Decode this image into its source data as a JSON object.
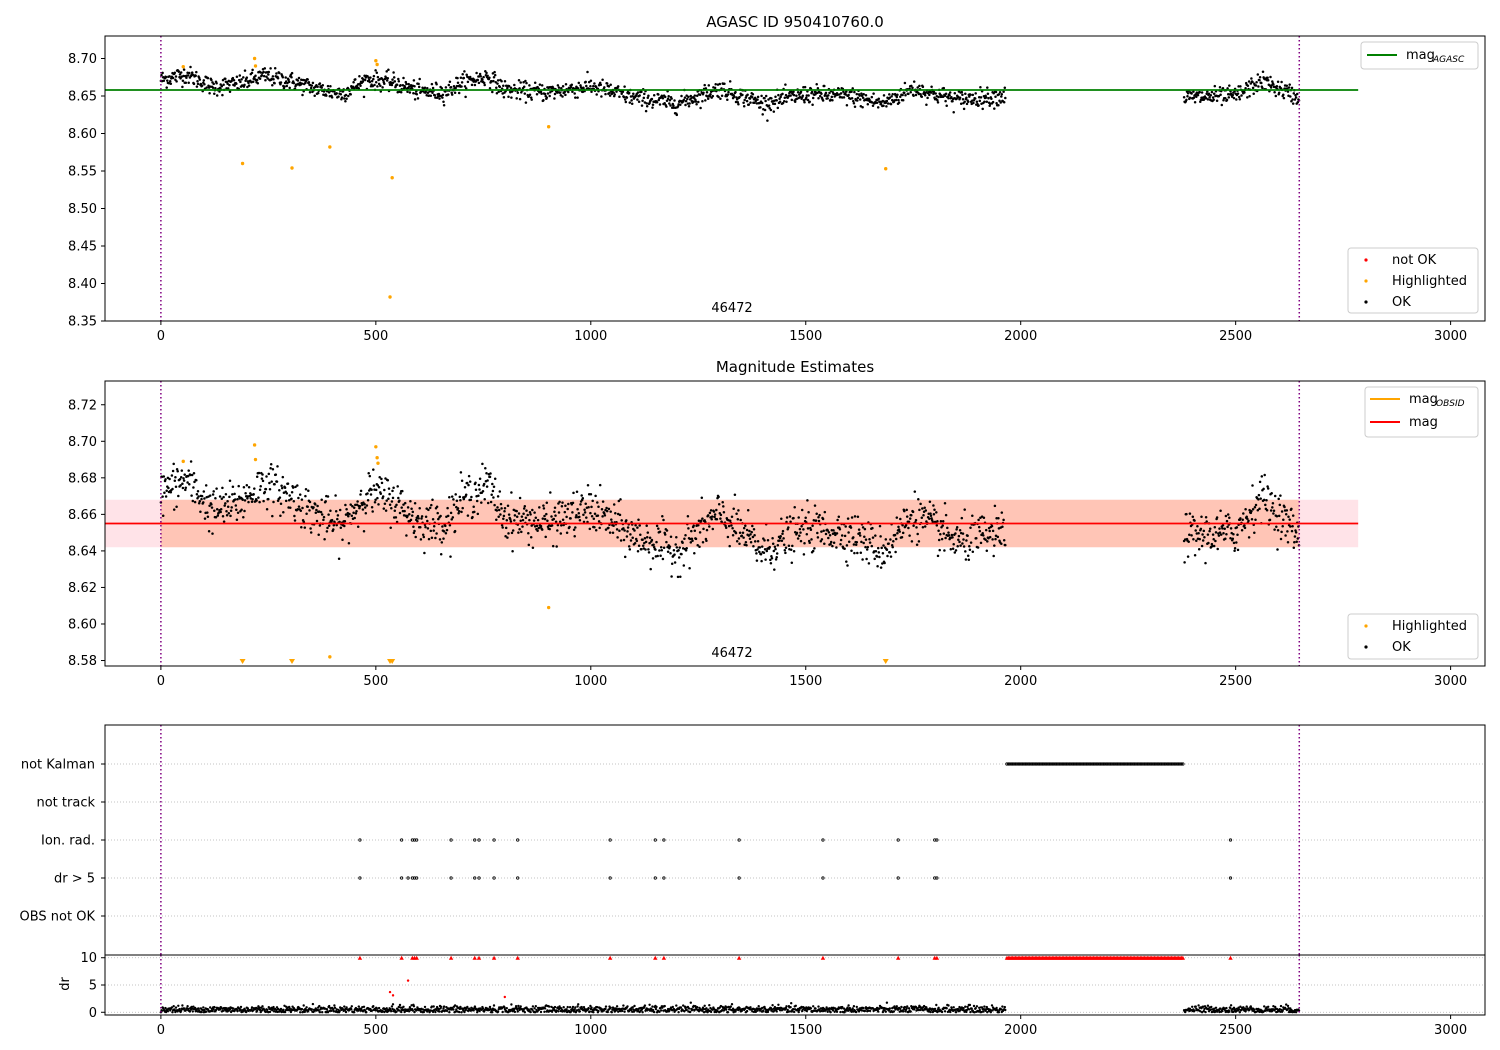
{
  "chart_data": [
    {
      "type": "scatter",
      "title": "AGASC ID 950410760.0",
      "annotation": "46472",
      "xlim": [
        -130,
        3080
      ],
      "ylim": [
        8.35,
        8.73
      ],
      "xticks": [
        0,
        500,
        1000,
        1500,
        2000,
        2500,
        3000
      ],
      "yticks": [
        8.35,
        8.4,
        8.45,
        8.5,
        8.55,
        8.6,
        8.65,
        8.7
      ],
      "ytick_labels": [
        "8.35",
        "8.40",
        "8.45",
        "8.50",
        "8.55",
        "8.60",
        "8.65",
        "8.70"
      ],
      "vlines": [
        0,
        2648
      ],
      "vline_color": "#800080",
      "ok_segments": [
        [
          0,
          1965
        ],
        [
          2380,
          2648
        ]
      ],
      "ok_baseline": [
        [
          0,
          8.672
        ],
        [
          60,
          8.679
        ],
        [
          120,
          8.662
        ],
        [
          180,
          8.666
        ],
        [
          240,
          8.677
        ],
        [
          300,
          8.67
        ],
        [
          360,
          8.66
        ],
        [
          420,
          8.653
        ],
        [
          480,
          8.672
        ],
        [
          540,
          8.668
        ],
        [
          600,
          8.656
        ],
        [
          660,
          8.655
        ],
        [
          700,
          8.668
        ],
        [
          760,
          8.676
        ],
        [
          800,
          8.658
        ],
        [
          900,
          8.655
        ],
        [
          1000,
          8.663
        ],
        [
          1100,
          8.648
        ],
        [
          1200,
          8.64
        ],
        [
          1300,
          8.66
        ],
        [
          1400,
          8.64
        ],
        [
          1500,
          8.652
        ],
        [
          1600,
          8.65
        ],
        [
          1680,
          8.64
        ],
        [
          1750,
          8.66
        ],
        [
          1850,
          8.645
        ],
        [
          1965,
          8.65
        ],
        [
          2380,
          8.648
        ],
        [
          2500,
          8.65
        ],
        [
          2560,
          8.67
        ],
        [
          2648,
          8.648
        ]
      ],
      "ok_spread": 0.006,
      "ok_color": "#000000",
      "highlighted_points": [
        [
          52,
          8.689
        ],
        [
          190,
          8.56
        ],
        [
          218,
          8.7
        ],
        [
          220,
          8.69
        ],
        [
          305,
          8.554
        ],
        [
          393,
          8.582
        ],
        [
          500,
          8.697
        ],
        [
          503,
          8.692
        ],
        [
          533,
          8.382
        ],
        [
          538,
          8.541
        ],
        [
          902,
          8.609
        ],
        [
          1686,
          8.553
        ]
      ],
      "highlighted_color": "#FFA500",
      "not_ok_color": "#FF0000",
      "line": {
        "name": "mag",
        "subscript": "AGASC",
        "value": 8.658,
        "x_range": [
          -130,
          2785
        ],
        "color": "#008000"
      },
      "legend_lines": [
        {
          "name": "mag",
          "subscript": "AGASC",
          "color": "#008000"
        }
      ],
      "legend_scatter": [
        {
          "name": "not OK",
          "color": "#FF0000"
        },
        {
          "name": "Highlighted",
          "color": "#FFA500"
        },
        {
          "name": "OK",
          "color": "#000000"
        }
      ]
    },
    {
      "type": "scatter",
      "title": "Magnitude Estimates",
      "annotation": "46472",
      "xlim": [
        -130,
        3080
      ],
      "ylim": [
        8.577,
        8.733
      ],
      "xticks": [
        0,
        500,
        1000,
        1500,
        2000,
        2500,
        3000
      ],
      "yticks": [
        8.58,
        8.6,
        8.62,
        8.64,
        8.66,
        8.68,
        8.7,
        8.72
      ],
      "ytick_labels": [
        "8.58",
        "8.60",
        "8.62",
        "8.64",
        "8.66",
        "8.68",
        "8.70",
        "8.72"
      ],
      "vlines": [
        0,
        2648
      ],
      "vline_color": "#800080",
      "ok_segments": [
        [
          0,
          1965
        ],
        [
          2380,
          2648
        ]
      ],
      "ok_baseline": [
        [
          0,
          8.672
        ],
        [
          60,
          8.679
        ],
        [
          120,
          8.662
        ],
        [
          180,
          8.666
        ],
        [
          240,
          8.677
        ],
        [
          300,
          8.67
        ],
        [
          360,
          8.66
        ],
        [
          420,
          8.653
        ],
        [
          480,
          8.672
        ],
        [
          540,
          8.668
        ],
        [
          600,
          8.656
        ],
        [
          660,
          8.655
        ],
        [
          700,
          8.668
        ],
        [
          760,
          8.676
        ],
        [
          800,
          8.658
        ],
        [
          900,
          8.655
        ],
        [
          1000,
          8.663
        ],
        [
          1100,
          8.648
        ],
        [
          1200,
          8.64
        ],
        [
          1300,
          8.66
        ],
        [
          1400,
          8.64
        ],
        [
          1500,
          8.652
        ],
        [
          1600,
          8.65
        ],
        [
          1680,
          8.64
        ],
        [
          1750,
          8.66
        ],
        [
          1850,
          8.645
        ],
        [
          1965,
          8.65
        ],
        [
          2380,
          8.648
        ],
        [
          2500,
          8.65
        ],
        [
          2560,
          8.67
        ],
        [
          2648,
          8.648
        ]
      ],
      "ok_spread": 0.006,
      "ok_color": "#000000",
      "highlighted_points": [
        [
          52,
          8.689
        ],
        [
          218,
          8.698
        ],
        [
          220,
          8.69
        ],
        [
          393,
          8.582
        ],
        [
          500,
          8.697
        ],
        [
          503,
          8.691
        ],
        [
          505,
          8.688
        ],
        [
          902,
          8.609
        ]
      ],
      "clipped_markers_x": [
        190,
        305,
        533,
        538,
        1686
      ],
      "highlighted_color": "#FFA500",
      "band_orange": {
        "x_range": [
          0,
          2648
        ],
        "y_range": [
          8.642,
          8.668
        ],
        "color": "#FFA07A"
      },
      "band_pink": {
        "x_range": [
          -130,
          2785
        ],
        "y_range": [
          8.642,
          8.668
        ],
        "color": "#FFC0CB"
      },
      "line": {
        "name": "mag",
        "value": 8.655,
        "x_range": [
          -130,
          2785
        ],
        "color": "#FF0000"
      },
      "legend_lines": [
        {
          "name": "mag",
          "subscript": "OBSID",
          "color": "#FFA500"
        },
        {
          "name": "mag",
          "subscript": "",
          "color": "#FF0000"
        }
      ],
      "legend_scatter": [
        {
          "name": "Highlighted",
          "color": "#FFA500"
        },
        {
          "name": "OK",
          "color": "#000000"
        }
      ]
    },
    {
      "type": "scatter",
      "title": "",
      "xlim": [
        -130,
        3080
      ],
      "categories": [
        "not Kalman",
        "not track",
        "Ion. rad.",
        "dr > 5",
        "OBS not OK"
      ],
      "flags": {
        "not Kalman": {
          "ranges": [
            [
              1968,
              2380
            ]
          ],
          "points": []
        },
        "not track": {
          "ranges": [],
          "points": []
        },
        "Ion. rad.": {
          "ranges": [],
          "points": [
            463,
            560,
            585,
            590,
            595,
            675,
            730,
            740,
            775,
            830,
            1045,
            1150,
            1170,
            1345,
            1540,
            1715,
            1800,
            1805,
            2488
          ]
        },
        "dr > 5": {
          "ranges": [],
          "points": [
            463,
            560,
            575,
            585,
            590,
            595,
            675,
            730,
            740,
            775,
            830,
            1045,
            1150,
            1170,
            1345,
            1540,
            1715,
            1800,
            1805,
            2488
          ]
        },
        "OBS not OK": {
          "ranges": [],
          "points": []
        }
      },
      "vlines": [
        0,
        2648
      ]
    },
    {
      "type": "scatter",
      "title": "",
      "ylabel": "dr",
      "xlim": [
        -130,
        3080
      ],
      "ylim": [
        -0.5,
        10.5
      ],
      "xticks": [
        0,
        500,
        1000,
        1500,
        2000,
        2500,
        3000
      ],
      "yticks": [
        0,
        5,
        10
      ],
      "ok_segments": [
        [
          0,
          1965
        ],
        [
          2380,
          2648
        ]
      ],
      "ok_level": 0.5,
      "ok_spread": 0.35,
      "red_points": [
        [
          533,
          3.7
        ],
        [
          540,
          3.1
        ],
        [
          575,
          5.8
        ],
        [
          800,
          2.8
        ]
      ],
      "clipped_x": [
        463,
        560,
        585,
        590,
        595,
        675,
        730,
        740,
        775,
        830,
        1045,
        1150,
        1170,
        1345,
        1540,
        1715,
        1800,
        1805,
        2488
      ],
      "clipped_ranges": [
        [
          1968,
          2380
        ]
      ],
      "clipped_value": 10,
      "vlines": [
        0,
        2648
      ]
    }
  ]
}
